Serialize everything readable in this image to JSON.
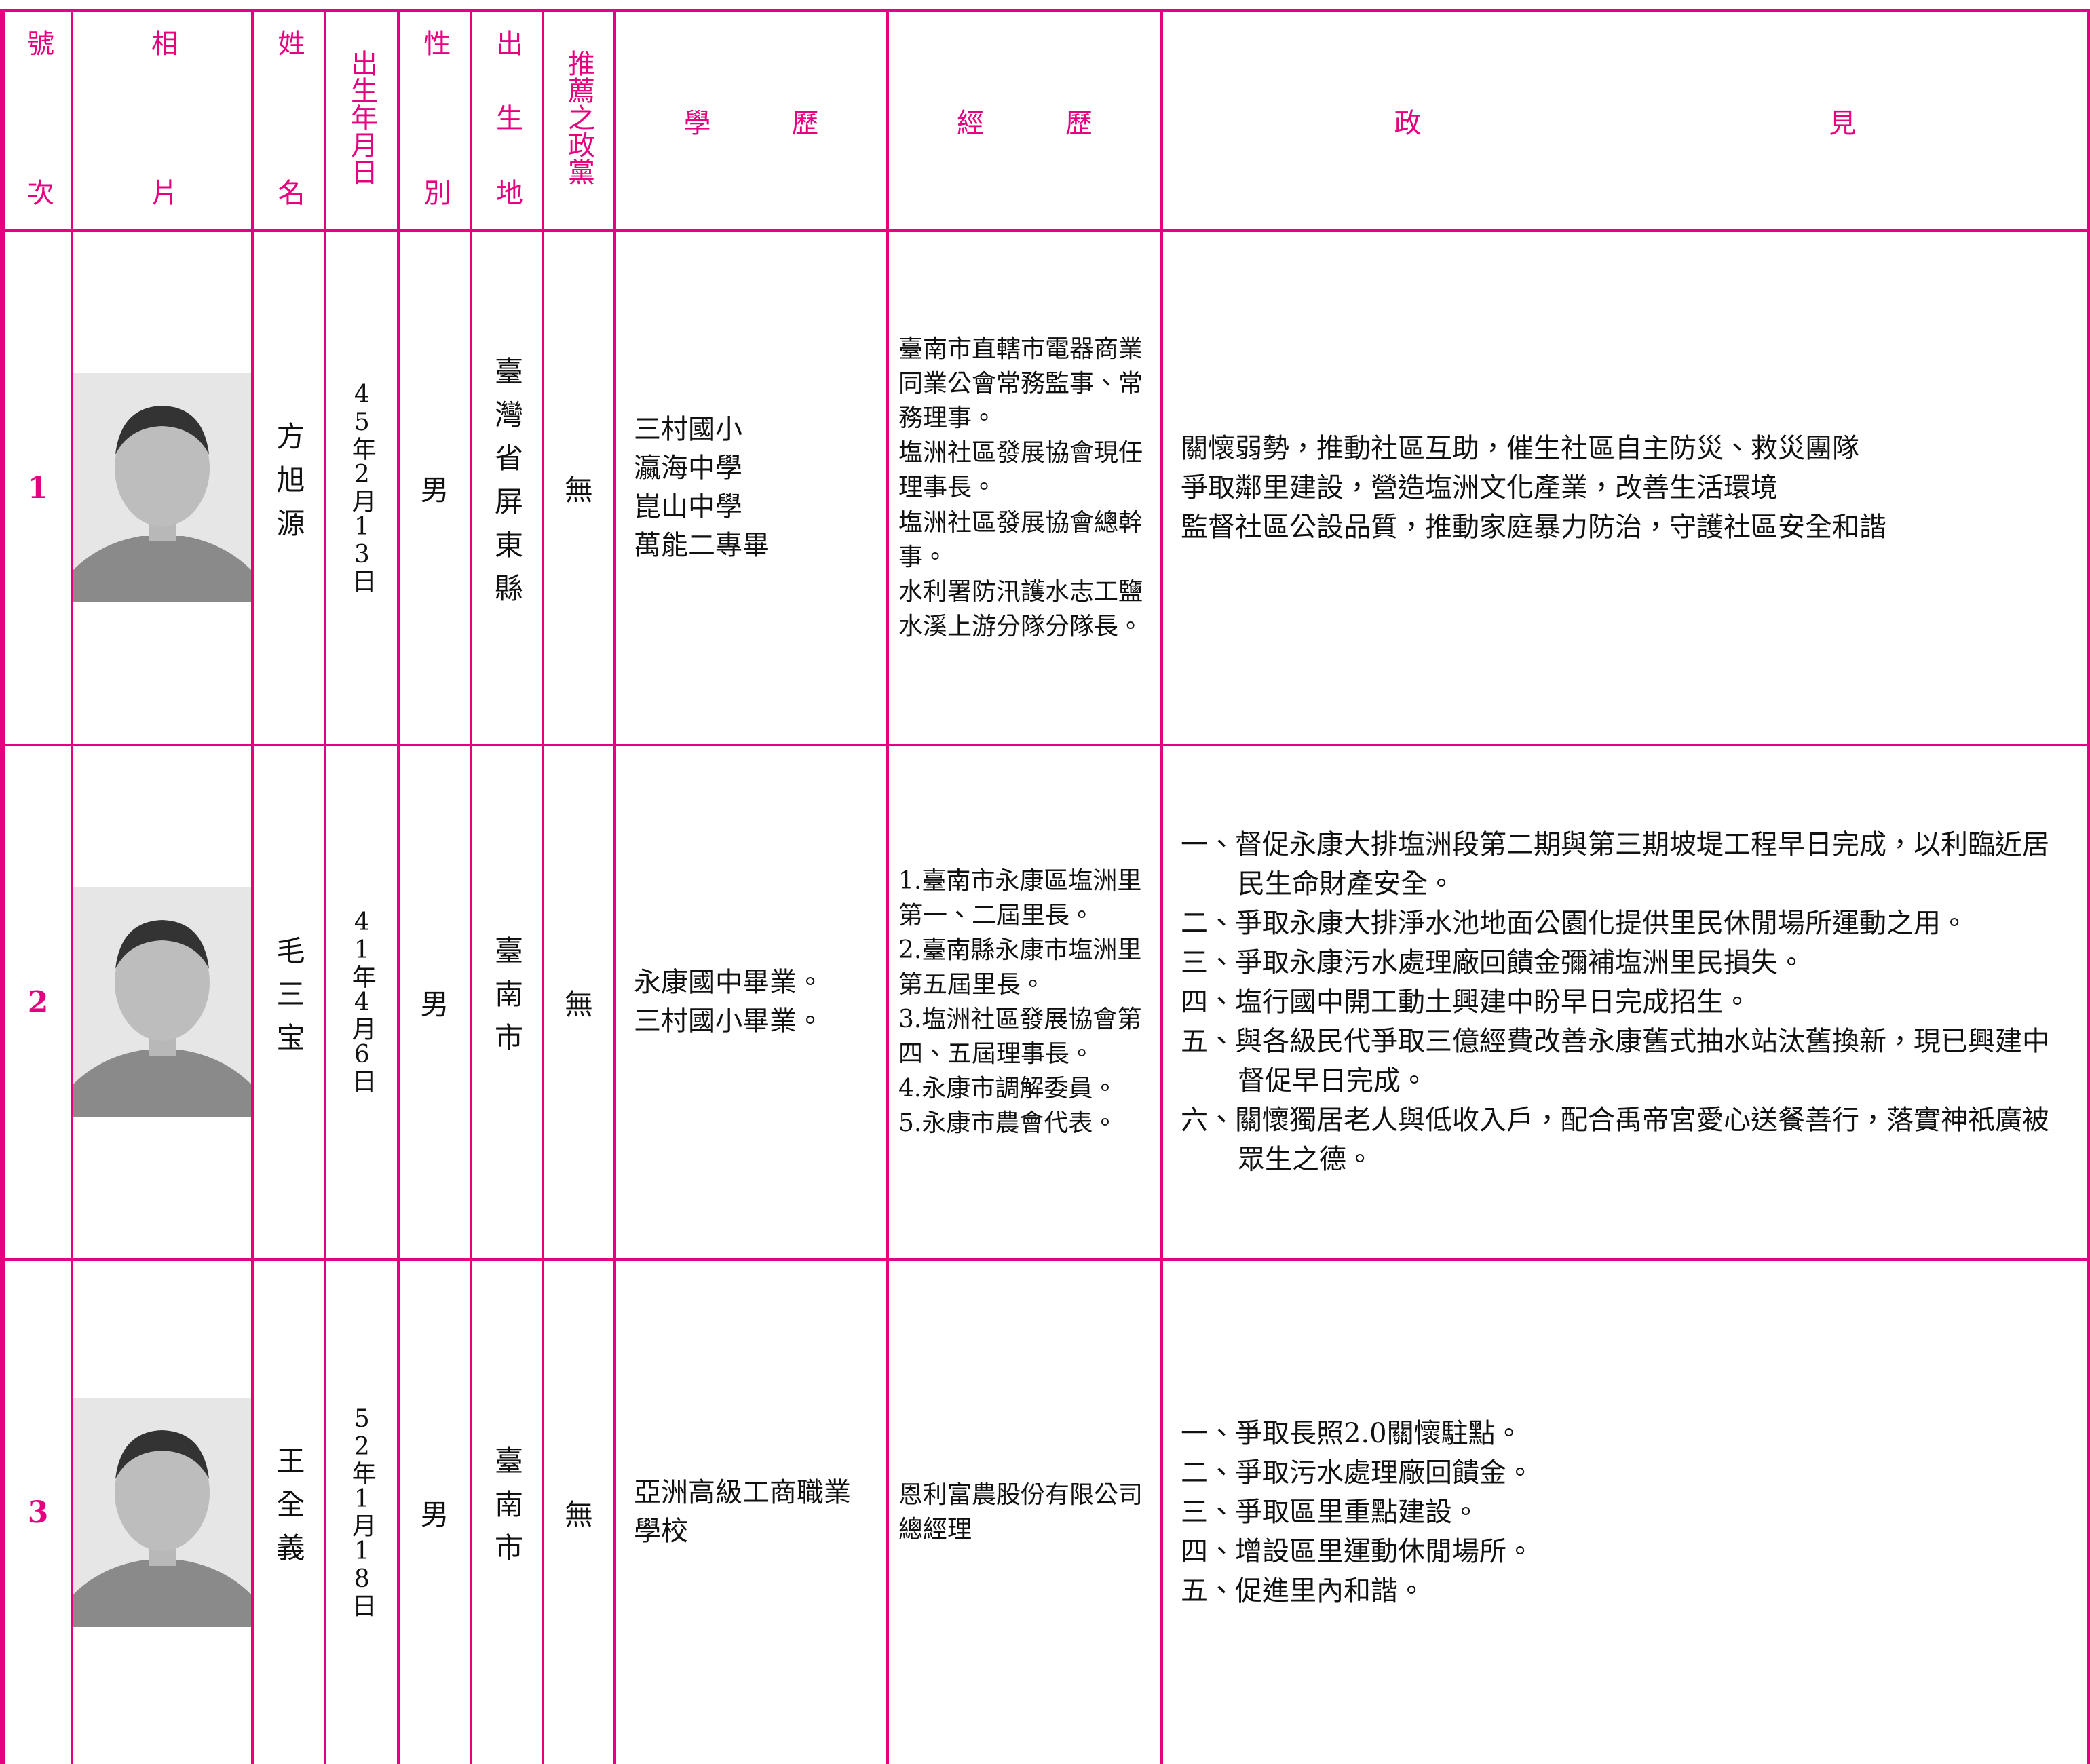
{
  "header": {
    "columns": [
      "號次",
      "相片",
      "姓名",
      "出生年月日",
      "性別",
      "出生地",
      "推薦之政黨",
      "學歷",
      "經歷",
      "政見"
    ]
  },
  "rows": [
    {
      "number": "1",
      "name": "方旭源",
      "birth_date": "45年2月13日",
      "gender": "男",
      "birthplace": "臺灣省屏東縣",
      "party": "無",
      "education": [
        "三村國小",
        "瀛海中學",
        "崑山中學",
        "萬能二專畢"
      ],
      "experience": [
        "臺南市直轄市電器商業同業公會常務監事、常務理事。",
        "塩洲社區發展協會現任理事長。",
        "塩洲社區發展協會總幹事。",
        "水利署防汛護水志工鹽水溪上游分隊分隊長。"
      ],
      "platform": [
        "關懷弱勢，推動社區互助，催生社區自主防災、救災團隊",
        "爭取鄰里建設，營造塩洲文化產業，改善生活環境",
        "監督社區公設品質，推動家庭暴力防治，守護社區安全和諧"
      ]
    },
    {
      "number": "2",
      "name": "毛三宝",
      "birth_date": "41年4月6日",
      "gender": "男",
      "birthplace": "臺南市",
      "party": "無",
      "education": [
        "永康國中畢業。",
        "三村國小畢業。"
      ],
      "experience": [
        "1.臺南市永康區塩洲里第一、二屆里長。",
        "2.臺南縣永康市塩洲里第五屆里長。",
        "3.塩洲社區發展協會第四、五屆理事長。",
        "4.永康市調解委員。",
        "5.永康市農會代表。"
      ],
      "platform": [
        "一、督促永康大排塩洲段第二期與第三期坡堤工程早日完成，以利臨近居民生命財產安全。",
        "二、爭取永康大排淨水池地面公園化提供里民休閒場所運動之用。",
        "三、爭取永康污水處理廠回饋金彌補塩洲里民損失。",
        "四、塩行國中開工動土興建中盼早日完成招生。",
        "五、與各級民代爭取三億經費改善永康舊式抽水站汰舊換新，現已興建中督促早日完成。",
        "六、關懷獨居老人與低收入戶，配合禹帝宮愛心送餐善行，落實神祇廣被眾生之德。"
      ]
    },
    {
      "number": "3",
      "name": "王全義",
      "birth_date": "52年1月18日",
      "gender": "男",
      "birthplace": "臺南市",
      "party": "無",
      "education": [
        "亞洲高級工商職業學校"
      ],
      "experience": [
        "恩利富農股份有限公司總經理"
      ],
      "platform": [
        "一、爭取長照2.0關懷駐點。",
        "二、爭取污水處理廠回饋金。",
        "三、爭取區里重點建設。",
        "四、增設區里運動休閒場所。",
        "五、促進里內和諧。"
      ]
    }
  ]
}
